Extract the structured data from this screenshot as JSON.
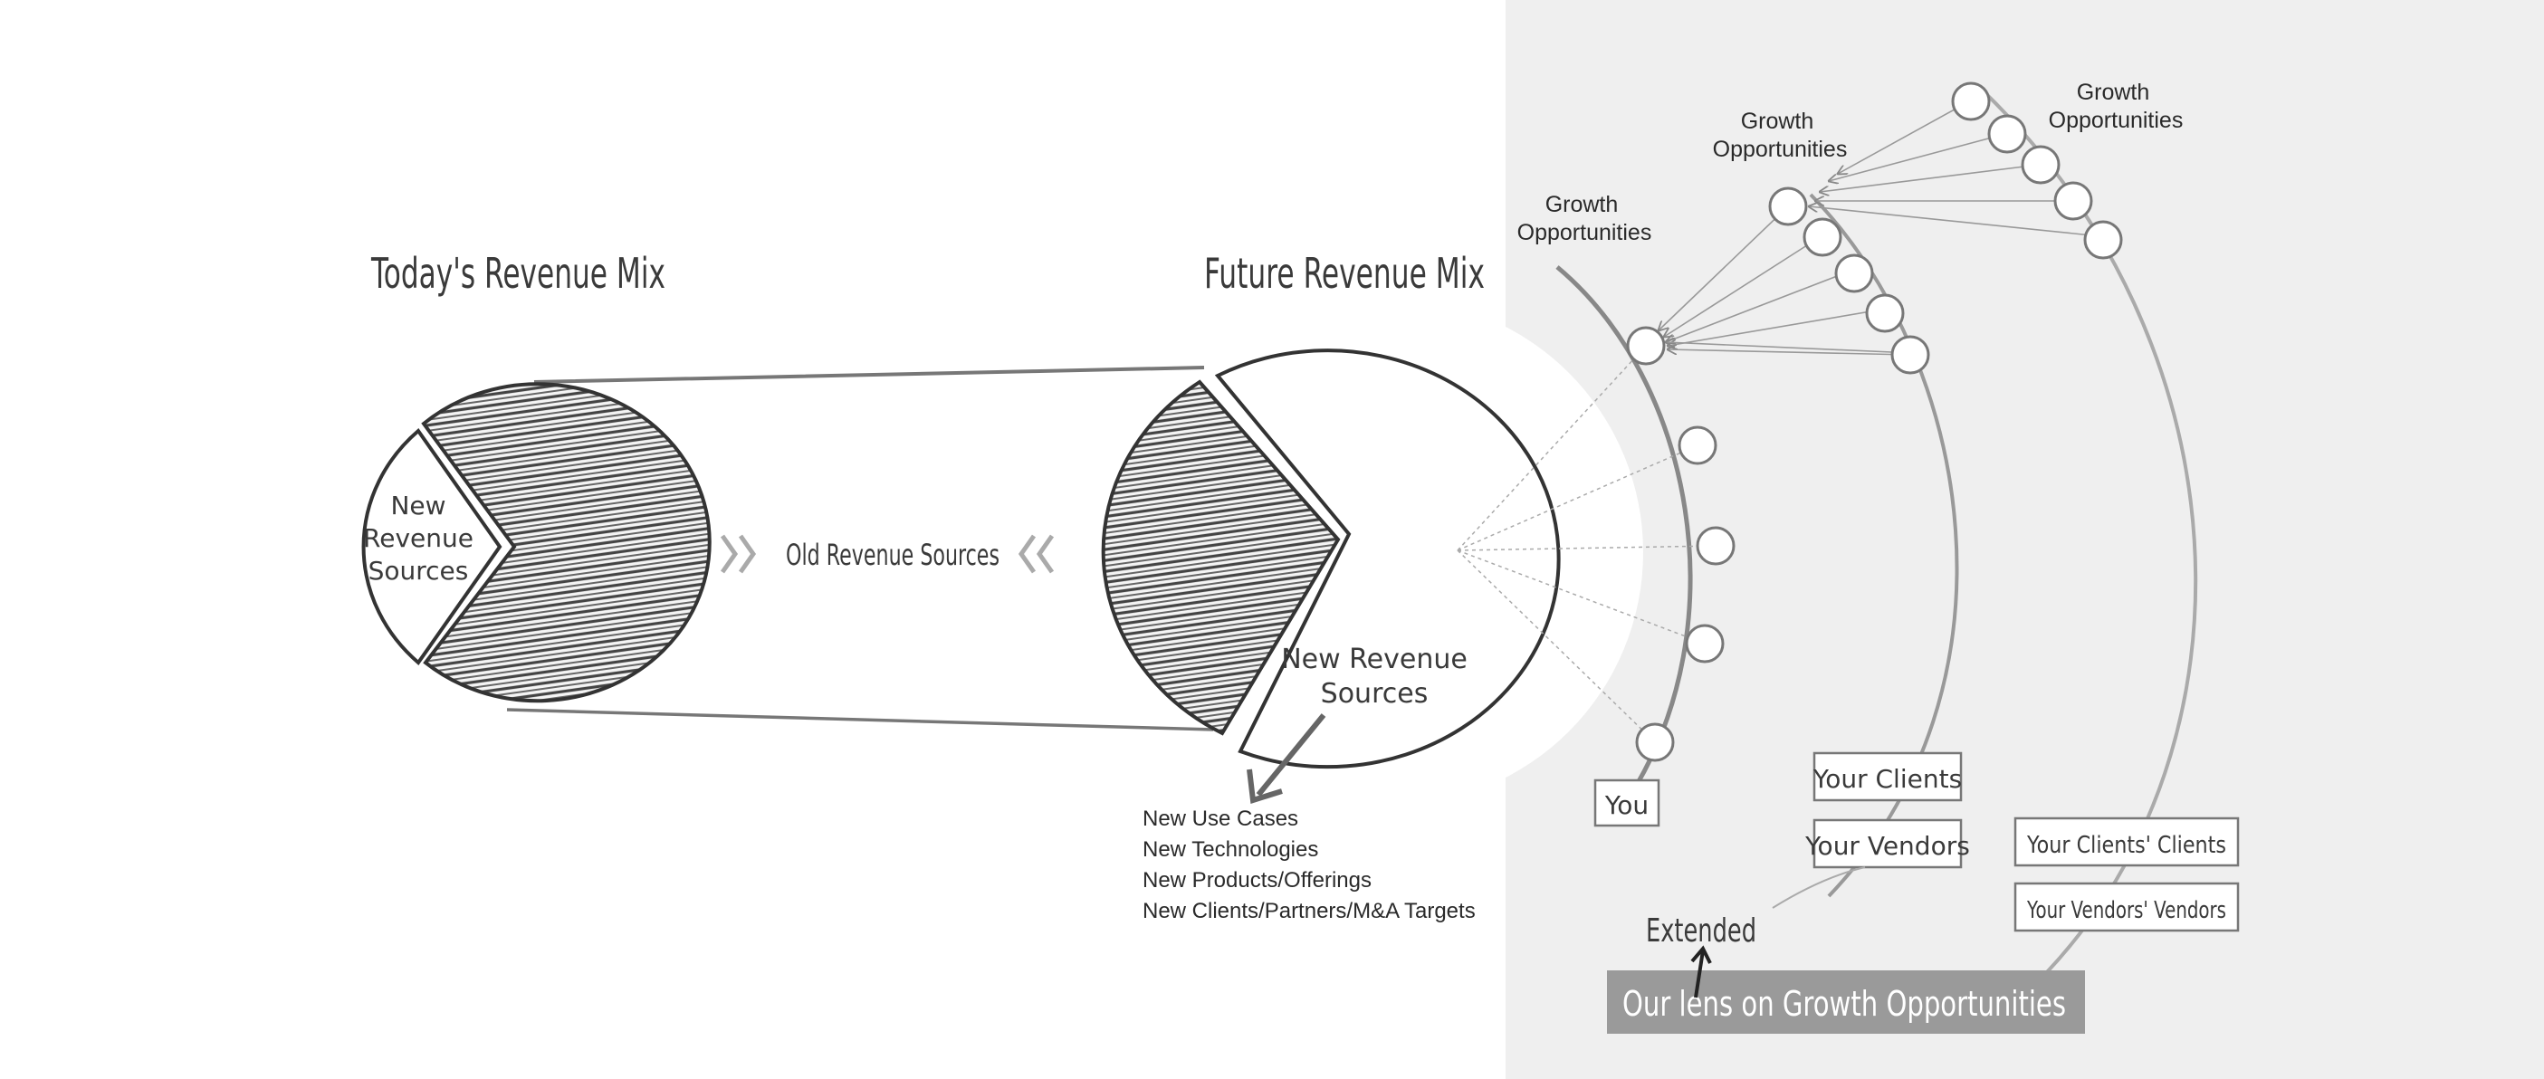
{
  "left_chart": {
    "title": "Today's Revenue Mix",
    "small_slice_label": [
      "New",
      "Revenue",
      "Sources"
    ]
  },
  "middle_label": "Old Revenue Sources",
  "right_chart": {
    "title": "Future Revenue Mix",
    "slice_label": [
      "New Revenue",
      "Sources"
    ]
  },
  "new_sources_list": [
    "New Use Cases",
    "New Technologies",
    "New Products/Offerings",
    "New Clients/Partners/M&A Targets"
  ],
  "growth_labels": [
    [
      "Growth",
      "Opportunities"
    ],
    [
      "Growth",
      "Opportunities"
    ],
    [
      "Growth",
      "Opportunities"
    ]
  ],
  "boxes": {
    "you": "You",
    "your_clients": "Your Clients",
    "your_vendors": "Your Vendors",
    "clients_clients": "Your Clients' Clients",
    "vendors_vendors": "Your Vendors' Vendors"
  },
  "extended": "Extended",
  "banner": "Our   lens on Growth Opportunities",
  "colors": {
    "panel": "#efefef",
    "ink": "#3a3a3a",
    "banner": "#9a9a9a"
  }
}
